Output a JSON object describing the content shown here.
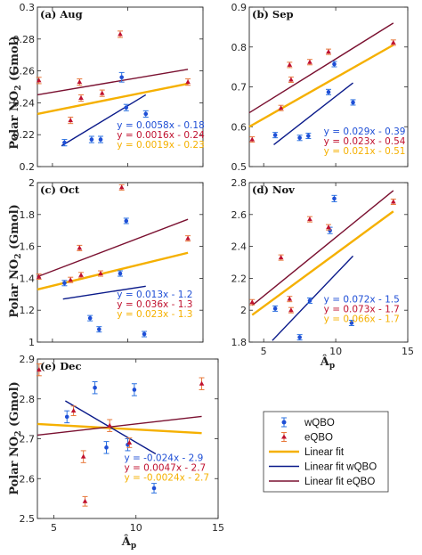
{
  "colors": {
    "w": "#1f4fd6",
    "e": "#c0112f",
    "fit": "#f5b000",
    "fitW": "#0a1a8a",
    "fitE": "#7a1030",
    "err_w": "#2a70e0",
    "err_e": "#e8783a"
  },
  "figure": {
    "ylabel_prefix": "Polar NO",
    "ylabel_sub": "2",
    "ylabel_suffix": " (Gmol)",
    "xlabel_main": "Â",
    "xlabel_sub": "p"
  },
  "legend": [
    {
      "label": "wQBO",
      "kind": "w"
    },
    {
      "label": "eQBO",
      "kind": "e"
    },
    {
      "label": "Linear fit",
      "kind": "fit"
    },
    {
      "label": "Linear fit wQBO",
      "kind": "fitW"
    },
    {
      "label": "Linear fit eQBO",
      "kind": "fitE"
    }
  ],
  "chart_data": [
    {
      "type": "scatter",
      "label": "(a) Aug",
      "xlim": [
        4,
        15
      ],
      "ylim": [
        0.2,
        0.3
      ],
      "yticks": [
        "0.2",
        "0.22",
        "0.24",
        "0.26",
        "0.28",
        "0.3"
      ],
      "xticks": [],
      "series": [
        {
          "name": "wQBO",
          "x": [
            5.8,
            7.6,
            8.2,
            9.6,
            9.9,
            11.2
          ],
          "y": [
            0.215,
            0.217,
            0.217,
            0.256,
            0.237,
            0.233
          ],
          "err": [
            0.002,
            0.002,
            0.002,
            0.003,
            0.002,
            0.002
          ]
        },
        {
          "name": "eQBO",
          "x": [
            4.1,
            6.2,
            6.8,
            6.9,
            8.3,
            9.5,
            14.0
          ],
          "y": [
            0.254,
            0.229,
            0.253,
            0.243,
            0.246,
            0.283,
            0.253
          ],
          "err": [
            0.002,
            0.002,
            0.002,
            0.002,
            0.002,
            0.002,
            0.002
          ]
        }
      ],
      "fits": [
        {
          "name": "Linear fit",
          "x": [
            4,
            14
          ],
          "y": [
            0.233,
            0.252
          ]
        },
        {
          "name": "Linear fit wQBO",
          "x": [
            5.6,
            11.2
          ],
          "y": [
            0.213,
            0.245
          ]
        },
        {
          "name": "Linear fit eQBO",
          "x": [
            4,
            14
          ],
          "y": [
            0.245,
            0.261
          ]
        }
      ],
      "equations": [
        "y = 0.0058x - 0.18",
        "y = 0.0016x - 0.24",
        "y = 0.0019x - 0.23"
      ]
    },
    {
      "type": "scatter",
      "label": "(b) Sep",
      "xlim": [
        4,
        15
      ],
      "ylim": [
        0.5,
        0.9
      ],
      "yticks": [
        "0.5",
        "0.6",
        "0.7",
        "0.8",
        "0.9"
      ],
      "xticks": [],
      "series": [
        {
          "name": "wQBO",
          "x": [
            5.8,
            7.5,
            8.1,
            9.5,
            9.9,
            11.2
          ],
          "y": [
            0.579,
            0.572,
            0.577,
            0.687,
            0.757,
            0.661
          ],
          "err": [
            0.003,
            0.003,
            0.003,
            0.003,
            0.005,
            0.003
          ]
        },
        {
          "name": "eQBO",
          "x": [
            4.2,
            6.2,
            6.8,
            6.9,
            8.2,
            9.5,
            14.0
          ],
          "y": [
            0.568,
            0.647,
            0.755,
            0.718,
            0.762,
            0.788,
            0.811
          ],
          "err": [
            0.003,
            0.003,
            0.003,
            0.003,
            0.003,
            0.003,
            0.003
          ]
        }
      ],
      "fits": [
        {
          "name": "Linear fit",
          "x": [
            4,
            14
          ],
          "y": [
            0.6,
            0.805
          ]
        },
        {
          "name": "Linear fit wQBO",
          "x": [
            5.7,
            11.2
          ],
          "y": [
            0.555,
            0.71
          ]
        },
        {
          "name": "Linear fit eQBO",
          "x": [
            4,
            14
          ],
          "y": [
            0.635,
            0.86
          ]
        }
      ],
      "equations": [
        "y = 0.029x - 0.39",
        "y = 0.023x - 0.54",
        "y = 0.021x - 0.51"
      ]
    },
    {
      "type": "scatter",
      "label": "(c) Oct",
      "xlim": [
        4,
        15
      ],
      "ylim": [
        1,
        2
      ],
      "yticks": [
        "1",
        "1.2",
        "1.4",
        "1.6",
        "1.8",
        "2"
      ],
      "xticks": [],
      "series": [
        {
          "name": "wQBO",
          "x": [
            5.8,
            7.5,
            8.1,
            9.5,
            9.9,
            11.1
          ],
          "y": [
            1.37,
            1.15,
            1.08,
            1.43,
            1.76,
            1.05
          ],
          "err": [
            0.01,
            0.01,
            0.01,
            0.01,
            0.01,
            0.01
          ]
        },
        {
          "name": "eQBO",
          "x": [
            4.1,
            6.2,
            6.8,
            6.9,
            8.2,
            9.6,
            14.0
          ],
          "y": [
            1.41,
            1.39,
            1.59,
            1.42,
            1.43,
            1.97,
            1.65
          ],
          "err": [
            0.01,
            0.01,
            0.01,
            0.01,
            0.01,
            0.01,
            0.01
          ]
        }
      ],
      "fits": [
        {
          "name": "Linear fit",
          "x": [
            4,
            14
          ],
          "y": [
            1.33,
            1.56
          ]
        },
        {
          "name": "Linear fit wQBO",
          "x": [
            5.7,
            11.2
          ],
          "y": [
            1.27,
            1.35
          ]
        },
        {
          "name": "Linear fit eQBO",
          "x": [
            4,
            14
          ],
          "y": [
            1.41,
            1.77
          ]
        }
      ],
      "equations": [
        "y = 0.013x - 1.2",
        "y = 0.036x - 1.3",
        "y = 0.023x - 1.3"
      ]
    },
    {
      "type": "scatter",
      "label": "(d) Nov",
      "xlim": [
        4,
        15
      ],
      "ylim": [
        1.8,
        2.8
      ],
      "yticks": [
        "1.8",
        "2",
        "2.2",
        "2.4",
        "2.6",
        "2.8"
      ],
      "xticks": [
        "5",
        "10",
        "15"
      ],
      "series": [
        {
          "name": "wQBO",
          "x": [
            5.8,
            7.5,
            8.2,
            9.6,
            9.9,
            11.1
          ],
          "y": [
            2.01,
            1.83,
            2.06,
            2.5,
            2.7,
            1.92
          ],
          "err": [
            0.01,
            0.01,
            0.01,
            0.02,
            0.02,
            0.01
          ]
        },
        {
          "name": "eQBO",
          "x": [
            4.2,
            6.2,
            6.8,
            6.9,
            8.2,
            9.5,
            14.0
          ],
          "y": [
            2.05,
            2.33,
            2.07,
            2.0,
            2.57,
            2.52,
            2.68
          ],
          "err": [
            0.01,
            0.01,
            0.01,
            0.01,
            0.01,
            0.01,
            0.01
          ]
        }
      ],
      "fits": [
        {
          "name": "Linear fit",
          "x": [
            4.2,
            14
          ],
          "y": [
            1.97,
            2.62
          ]
        },
        {
          "name": "Linear fit wQBO",
          "x": [
            5.6,
            11.2
          ],
          "y": [
            1.81,
            2.34
          ]
        },
        {
          "name": "Linear fit eQBO",
          "x": [
            4.2,
            14
          ],
          "y": [
            2.03,
            2.75
          ]
        }
      ],
      "equations": [
        "y = 0.072x - 1.5",
        "y = 0.073x - 1.7",
        "y = 0.066x - 1.7"
      ]
    },
    {
      "type": "scatter",
      "label": "(e) Dec",
      "xlim": [
        4,
        15
      ],
      "ylim": [
        2.5,
        2.9
      ],
      "yticks": [
        "2.5",
        "2.6",
        "2.7",
        "2.8",
        "2.9"
      ],
      "xticks": [
        "5",
        "10",
        "15"
      ],
      "series": [
        {
          "name": "wQBO",
          "x": [
            5.8,
            7.5,
            8.2,
            9.5,
            9.9,
            11.1
          ],
          "y": [
            2.755,
            2.828,
            2.678,
            2.685,
            2.823,
            2.576
          ],
          "err": [
            0.015,
            0.015,
            0.015,
            0.015,
            0.015,
            0.012
          ]
        },
        {
          "name": "eQBO",
          "x": [
            4.1,
            6.2,
            6.8,
            6.9,
            8.4,
            9.6,
            14.0
          ],
          "y": [
            2.873,
            2.77,
            2.655,
            2.543,
            2.733,
            2.69,
            2.838
          ],
          "err": [
            0.015,
            0.012,
            0.015,
            0.012,
            0.015,
            0.012,
            0.015
          ]
        }
      ],
      "fits": [
        {
          "name": "Linear fit",
          "x": [
            4,
            14
          ],
          "y": [
            2.737,
            2.714
          ]
        },
        {
          "name": "Linear fit wQBO",
          "x": [
            5.7,
            11.2
          ],
          "y": [
            2.795,
            2.662
          ]
        },
        {
          "name": "Linear fit eQBO",
          "x": [
            4,
            14
          ],
          "y": [
            2.709,
            2.756
          ]
        }
      ],
      "equations": [
        "y = -0.024x - 2.9",
        "y = 0.0047x - 2.7",
        "y = -0.0024x - 2.7"
      ]
    }
  ]
}
